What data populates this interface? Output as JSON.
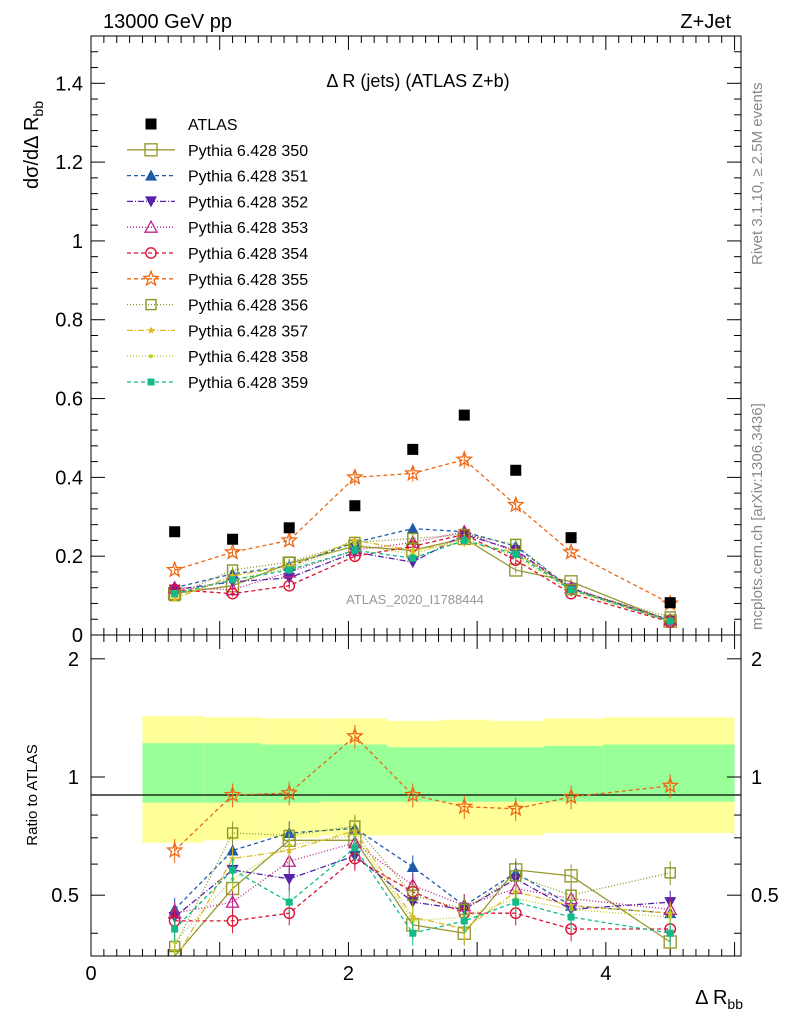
{
  "header": {
    "left": "13000 GeV pp",
    "right": "Z+Jet"
  },
  "side_labels": {
    "rivet": "Rivet 3.1.10, ≥ 2.5M events",
    "mcplots": "mcplots.cern.ch [arXiv:1306.3436]"
  },
  "chart_data": [
    {
      "type": "scatter",
      "title": "Δ R (jets) (ATLAS Z+b)",
      "analysis_label": "ATLAS_2020_I1788444",
      "ylabel": "dσ/dΔ R_bb",
      "ylim": [
        0,
        1.52
      ],
      "yticks": [
        "0",
        "0.2",
        "0.4",
        "0.6",
        "0.8",
        "1",
        "1.2",
        "1.4"
      ],
      "xlim": [
        0,
        5.05
      ],
      "x": [
        0.65,
        1.1,
        1.54,
        2.05,
        2.5,
        2.9,
        3.3,
        3.73,
        4.5
      ],
      "series": [
        {
          "name": "ATLAS",
          "color": "#000000",
          "marker": "square-filled",
          "values": [
            0.262,
            0.243,
            0.272,
            0.328,
            0.471,
            0.558,
            0.418,
            0.247,
            0.082
          ]
        },
        {
          "name": "Pythia 6.428 350",
          "color": "#999933",
          "marker": "square-open",
          "dash": "solid",
          "values": [
            0.105,
            0.125,
            0.182,
            0.225,
            0.215,
            0.245,
            0.165,
            0.135,
            0.035
          ]
        },
        {
          "name": "Pythia 6.428 351",
          "color": "#1f5aaa",
          "marker": "triangle-filled",
          "dash": "4,3",
          "values": [
            0.12,
            0.155,
            0.175,
            0.235,
            0.27,
            0.262,
            0.225,
            0.118,
            0.038
          ]
        },
        {
          "name": "Pythia 6.428 352",
          "color": "#5522aa",
          "marker": "triangle-down-filled",
          "dash": "6,2,1,2",
          "values": [
            0.115,
            0.135,
            0.145,
            0.21,
            0.185,
            0.255,
            0.215,
            0.118,
            0.036
          ]
        },
        {
          "name": "Pythia 6.428 353",
          "color": "#bb2288",
          "marker": "triangle-open",
          "dash": "1,2",
          "values": [
            0.12,
            0.115,
            0.16,
            0.215,
            0.235,
            0.262,
            0.21,
            0.12,
            0.038
          ]
        },
        {
          "name": "Pythia 6.428 354",
          "color": "#dd1133",
          "marker": "circle-open",
          "dash": "4,3",
          "values": [
            0.115,
            0.105,
            0.125,
            0.2,
            0.225,
            0.255,
            0.19,
            0.105,
            0.033
          ]
        },
        {
          "name": "Pythia 6.428 355",
          "color": "#ee6611",
          "marker": "star-open",
          "dash": "4,3",
          "values": [
            0.165,
            0.21,
            0.24,
            0.4,
            0.41,
            0.445,
            0.33,
            0.21,
            0.08
          ]
        },
        {
          "name": "Pythia 6.428 356",
          "color": "#889922",
          "marker": "square-open-small",
          "dash": "1,2",
          "values": [
            0.1,
            0.165,
            0.185,
            0.235,
            0.245,
            0.255,
            0.23,
            0.115,
            0.046
          ]
        },
        {
          "name": "Pythia 6.428 357",
          "color": "#ddbb22",
          "marker": "star-small",
          "dash": "6,2,1,2",
          "values": [
            0.092,
            0.15,
            0.175,
            0.24,
            0.215,
            0.235,
            0.21,
            0.115,
            0.036
          ]
        },
        {
          "name": "Pythia 6.428 358",
          "color": "#bbcc22",
          "marker": "dot",
          "dash": "1,2",
          "values": [
            0.102,
            0.14,
            0.17,
            0.23,
            0.205,
            0.245,
            0.2,
            0.112,
            0.035
          ]
        },
        {
          "name": "Pythia 6.428 359",
          "color": "#11bb88",
          "marker": "square-filled-small",
          "dash": "4,3",
          "values": [
            0.105,
            0.14,
            0.165,
            0.215,
            0.195,
            0.24,
            0.205,
            0.115,
            0.035
          ]
        }
      ]
    },
    {
      "type": "line",
      "ylabel": "Ratio to ATLAS",
      "xlabel": "Δ R_bb",
      "ylim": [
        0.35,
        2.3
      ],
      "yticks": [
        "0.5",
        "1",
        "2"
      ],
      "xticks": [
        "0",
        "2",
        "4"
      ],
      "xlim": [
        0,
        5.05
      ],
      "bands": {
        "bin_edges": [
          0.4,
          0.88,
          1.32,
          1.78,
          2.3,
          2.72,
          3.1,
          3.52,
          3.98,
          5.0
        ],
        "green_low": [
          0.86,
          0.86,
          0.86,
          0.865,
          0.865,
          0.865,
          0.865,
          0.865,
          0.865
        ],
        "green_high": [
          1.22,
          1.22,
          1.21,
          1.21,
          1.19,
          1.19,
          1.19,
          1.2,
          1.21
        ],
        "yellow_low": [
          0.68,
          0.69,
          0.7,
          0.71,
          0.71,
          0.71,
          0.71,
          0.72,
          0.72
        ],
        "yellow_high": [
          1.43,
          1.42,
          1.41,
          1.41,
          1.39,
          1.4,
          1.39,
          1.41,
          1.42
        ]
      },
      "reference": 1,
      "series": [
        {
          "name": "Pythia 6.428 350",
          "values": [
            0.35,
            0.52,
            0.69,
            0.69,
            0.42,
            0.4,
            0.58,
            0.56,
            0.38
          ]
        },
        {
          "name": "Pythia 6.428 351",
          "values": [
            0.46,
            0.65,
            0.72,
            0.74,
            0.59,
            0.47,
            0.57,
            0.47,
            0.45
          ]
        },
        {
          "name": "Pythia 6.428 352",
          "values": [
            0.44,
            0.58,
            0.55,
            0.63,
            0.48,
            0.46,
            0.55,
            0.46,
            0.48
          ]
        },
        {
          "name": "Pythia 6.428 353",
          "values": [
            0.45,
            0.48,
            0.61,
            0.68,
            0.53,
            0.47,
            0.52,
            0.49,
            0.46
          ]
        },
        {
          "name": "Pythia 6.428 354",
          "values": [
            0.43,
            0.43,
            0.45,
            0.62,
            0.51,
            0.45,
            0.45,
            0.41,
            0.41
          ]
        },
        {
          "name": "Pythia 6.428 355",
          "values": [
            0.65,
            0.9,
            0.91,
            1.27,
            0.9,
            0.84,
            0.83,
            0.89,
            0.95
          ]
        },
        {
          "name": "Pythia 6.428 356",
          "values": [
            0.37,
            0.72,
            0.71,
            0.75,
            0.5,
            0.46,
            0.56,
            0.5,
            0.57
          ]
        },
        {
          "name": "Pythia 6.428 357",
          "values": [
            0.34,
            0.62,
            0.65,
            0.73,
            0.44,
            0.41,
            0.51,
            0.47,
            0.45
          ]
        },
        {
          "name": "Pythia 6.428 358",
          "values": [
            0.38,
            0.55,
            0.67,
            0.71,
            0.43,
            0.44,
            0.49,
            0.46,
            0.44
          ]
        },
        {
          "name": "Pythia 6.428 359",
          "values": [
            0.41,
            0.58,
            0.48,
            0.66,
            0.4,
            0.43,
            0.48,
            0.44,
            0.4
          ]
        }
      ]
    }
  ]
}
